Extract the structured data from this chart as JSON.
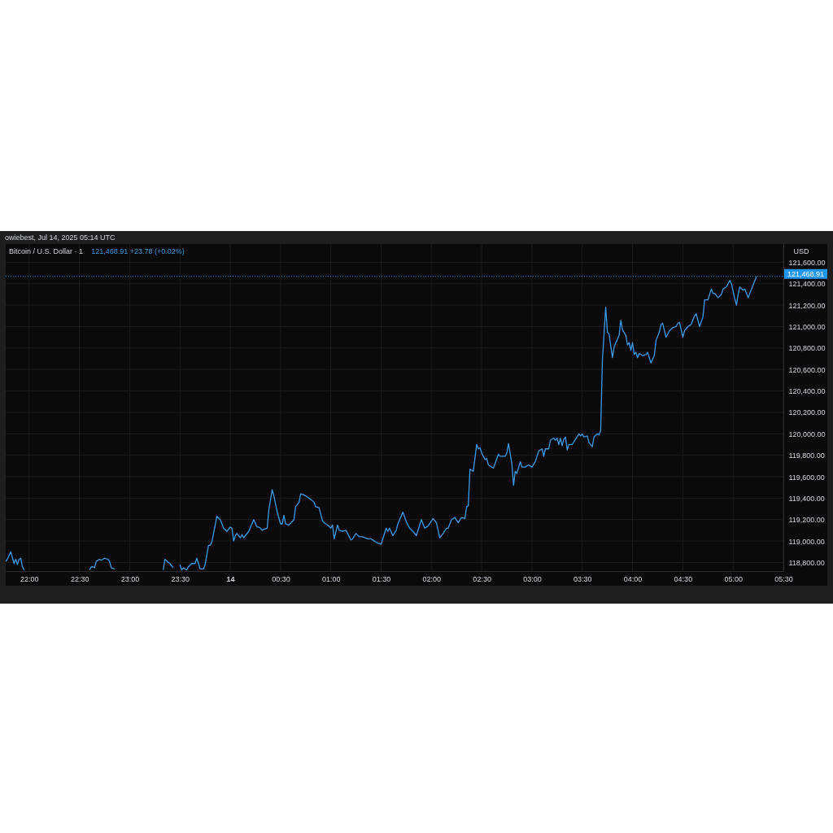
{
  "chart_data": {
    "type": "line",
    "title": "Bitcoin / U.S. Dollar · 1",
    "ylabel": "USD",
    "annotations": [
      "owiebest, Jul 14, 2025 05:14 UTC",
      "121,468.91 +23.78 (+0.02%)"
    ],
    "x": [
      "2025-07-13T21:46",
      "2025-07-13T21:47",
      "2025-07-13T21:49",
      "2025-07-13T21:51",
      "2025-07-13T21:52",
      "2025-07-13T21:53",
      "2025-07-13T21:54",
      "2025-07-13T21:55",
      "2025-07-13T21:56",
      "2025-07-13T21:57",
      "2025-07-13T22:15",
      "2025-07-13T22:36",
      "2025-07-13T22:37",
      "2025-07-13T22:38",
      "2025-07-13T22:39",
      "2025-07-13T22:40",
      "2025-07-13T22:42",
      "2025-07-13T22:43",
      "2025-07-13T22:44",
      "2025-07-13T22:45",
      "2025-07-13T22:47",
      "2025-07-13T22:48",
      "2025-07-13T22:49",
      "2025-07-13T22:51",
      "2025-07-13T23:05",
      "2025-07-13T23:20",
      "2025-07-13T23:21",
      "2025-07-13T23:23",
      "2025-07-13T23:24",
      "2025-07-13T23:26",
      "2025-07-13T23:28",
      "2025-07-13T23:30",
      "2025-07-13T23:31",
      "2025-07-13T23:32",
      "2025-07-13T23:34",
      "2025-07-13T23:35",
      "2025-07-13T23:37",
      "2025-07-13T23:39",
      "2025-07-13T23:40",
      "2025-07-13T23:41",
      "2025-07-13T23:42",
      "2025-07-13T23:44",
      "2025-07-13T23:45",
      "2025-07-13T23:47",
      "2025-07-13T23:48",
      "2025-07-13T23:49",
      "2025-07-13T23:52",
      "2025-07-13T23:54",
      "2025-07-13T23:56",
      "2025-07-13T23:58",
      "2025-07-14T00:00",
      "2025-07-14T00:01",
      "2025-07-14T00:02",
      "2025-07-14T00:03",
      "2025-07-14T00:04",
      "2025-07-14T00:06",
      "2025-07-14T00:07",
      "2025-07-14T00:08",
      "2025-07-14T00:09",
      "2025-07-14T00:11",
      "2025-07-14T00:14",
      "2025-07-14T00:16",
      "2025-07-14T00:17",
      "2025-07-14T00:18",
      "2025-07-14T00:19",
      "2025-07-14T00:20",
      "2025-07-14T00:22",
      "2025-07-14T00:23",
      "2025-07-14T00:25",
      "2025-07-14T00:26",
      "2025-07-14T00:28",
      "2025-07-14T00:30",
      "2025-07-14T00:31",
      "2025-07-14T00:32",
      "2025-07-14T00:33",
      "2025-07-14T00:35",
      "2025-07-14T00:38",
      "2025-07-14T00:39",
      "2025-07-14T00:41",
      "2025-07-14T00:42",
      "2025-07-14T00:44",
      "2025-07-14T00:46",
      "2025-07-14T00:48",
      "2025-07-14T00:50",
      "2025-07-14T00:51",
      "2025-07-14T00:53",
      "2025-07-14T00:55",
      "2025-07-14T00:56",
      "2025-07-14T00:58",
      "2025-07-14T01:00",
      "2025-07-14T01:01",
      "2025-07-14T01:02",
      "2025-07-14T01:04",
      "2025-07-14T01:05",
      "2025-07-14T01:07",
      "2025-07-14T01:09",
      "2025-07-14T01:10",
      "2025-07-14T01:12",
      "2025-07-14T01:13",
      "2025-07-14T01:15",
      "2025-07-14T01:17",
      "2025-07-14T01:19",
      "2025-07-14T01:22",
      "2025-07-14T01:24",
      "2025-07-14T01:26",
      "2025-07-14T01:28",
      "2025-07-14T01:30",
      "2025-07-14T01:31",
      "2025-07-14T01:33",
      "2025-07-14T01:34",
      "2025-07-14T01:35",
      "2025-07-14T01:37",
      "2025-07-14T01:39",
      "2025-07-14T01:40",
      "2025-07-14T01:43",
      "2025-07-14T01:45",
      "2025-07-14T01:47",
      "2025-07-14T01:49",
      "2025-07-14T01:51",
      "2025-07-14T01:54",
      "2025-07-14T01:56",
      "2025-07-14T01:58",
      "2025-07-14T02:01",
      "2025-07-14T02:03",
      "2025-07-14T02:05",
      "2025-07-14T02:07",
      "2025-07-14T02:09",
      "2025-07-14T02:10",
      "2025-07-14T02:12",
      "2025-07-14T02:14",
      "2025-07-14T02:16",
      "2025-07-14T02:18",
      "2025-07-14T02:20",
      "2025-07-14T02:21",
      "2025-07-14T02:22",
      "2025-07-14T02:23",
      "2025-07-14T02:25",
      "2025-07-14T02:27",
      "2025-07-14T02:28",
      "2025-07-14T02:29",
      "2025-07-14T02:30",
      "2025-07-14T02:32",
      "2025-07-14T02:33",
      "2025-07-14T02:34",
      "2025-07-14T02:37",
      "2025-07-14T02:40",
      "2025-07-14T02:41",
      "2025-07-14T02:44",
      "2025-07-14T02:45",
      "2025-07-14T02:46",
      "2025-07-14T02:48",
      "2025-07-14T02:49",
      "2025-07-14T02:50",
      "2025-07-14T02:51",
      "2025-07-14T02:53",
      "2025-07-14T02:54",
      "2025-07-14T02:56",
      "2025-07-14T02:58",
      "2025-07-14T03:00",
      "2025-07-14T03:02",
      "2025-07-14T03:04",
      "2025-07-14T03:06",
      "2025-07-14T03:07",
      "2025-07-14T03:08",
      "2025-07-14T03:10",
      "2025-07-14T03:11",
      "2025-07-14T03:13",
      "2025-07-14T03:14",
      "2025-07-14T03:15",
      "2025-07-14T03:16",
      "2025-07-14T03:17",
      "2025-07-14T03:18",
      "2025-07-14T03:19",
      "2025-07-14T03:20",
      "2025-07-14T03:21",
      "2025-07-14T03:22",
      "2025-07-14T03:24",
      "2025-07-14T03:26",
      "2025-07-14T03:28",
      "2025-07-14T03:29",
      "2025-07-14T03:30",
      "2025-07-14T03:31",
      "2025-07-14T03:33",
      "2025-07-14T03:34",
      "2025-07-14T03:36",
      "2025-07-14T03:37",
      "2025-07-14T03:39",
      "2025-07-14T03:40",
      "2025-07-14T03:41",
      "2025-07-14T03:42",
      "2025-07-14T03:44",
      "2025-07-14T03:45",
      "2025-07-14T03:46",
      "2025-07-14T03:48",
      "2025-07-14T03:49",
      "2025-07-14T03:52",
      "2025-07-14T03:53",
      "2025-07-14T03:54",
      "2025-07-14T03:56",
      "2025-07-14T03:57",
      "2025-07-14T03:58",
      "2025-07-14T03:59",
      "2025-07-14T04:00",
      "2025-07-14T04:01",
      "2025-07-14T04:02",
      "2025-07-14T04:03",
      "2025-07-14T04:04",
      "2025-07-14T04:06",
      "2025-07-14T04:08",
      "2025-07-14T04:09",
      "2025-07-14T04:11",
      "2025-07-14T04:13",
      "2025-07-14T04:14",
      "2025-07-14T04:16",
      "2025-07-14T04:17",
      "2025-07-14T04:18",
      "2025-07-14T04:20",
      "2025-07-14T04:22",
      "2025-07-14T04:24",
      "2025-07-14T04:26",
      "2025-07-14T04:27",
      "2025-07-14T04:28",
      "2025-07-14T04:30",
      "2025-07-14T04:31",
      "2025-07-14T04:33",
      "2025-07-14T04:35",
      "2025-07-14T04:37",
      "2025-07-14T04:38",
      "2025-07-14T04:40",
      "2025-07-14T04:42",
      "2025-07-14T04:43",
      "2025-07-14T04:45",
      "2025-07-14T04:47",
      "2025-07-14T04:48",
      "2025-07-14T04:49",
      "2025-07-14T04:51",
      "2025-07-14T04:53",
      "2025-07-14T04:54",
      "2025-07-14T04:56",
      "2025-07-14T04:58",
      "2025-07-14T04:59",
      "2025-07-14T05:01",
      "2025-07-14T05:02",
      "2025-07-14T05:03",
      "2025-07-14T05:04",
      "2025-07-14T05:06",
      "2025-07-14T05:07",
      "2025-07-14T05:09",
      "2025-07-14T05:10",
      "2025-07-14T05:11",
      "2025-07-14T05:12",
      "2025-07-14T05:14"
    ],
    "series": [
      {
        "color": "#3c9ae8",
        "values": [
          118810,
          118830,
          118900,
          118790,
          118830,
          118780,
          118830,
          118840,
          118760,
          118730,
          null,
          118730,
          118760,
          118760,
          118750,
          118810,
          118830,
          118820,
          118830,
          118840,
          118830,
          118810,
          118750,
          118740,
          null,
          118730,
          118830,
          118800,
          118790,
          118750,
          null,
          118780,
          118730,
          118750,
          118730,
          118760,
          118790,
          118790,
          118840,
          118790,
          118740,
          118740,
          118780,
          118960,
          118960,
          118990,
          119230,
          119200,
          119120,
          119090,
          119130,
          119120,
          119000,
          119050,
          119070,
          119030,
          119060,
          119030,
          119050,
          119090,
          119200,
          119130,
          119130,
          119120,
          119100,
          119110,
          119120,
          119290,
          119480,
          119420,
          119270,
          119160,
          119160,
          119240,
          119160,
          119150,
          119200,
          119320,
          119360,
          119440,
          119430,
          119410,
          119390,
          119360,
          119320,
          119310,
          119190,
          119170,
          119150,
          119120,
          119150,
          119020,
          119150,
          119100,
          119090,
          119100,
          119070,
          119010,
          119020,
          119070,
          119040,
          119040,
          119020,
          119020,
          119000,
          118980,
          118970,
          119020,
          119120,
          119090,
          119120,
          119050,
          119100,
          119160,
          119270,
          119180,
          119120,
          119090,
          119050,
          119200,
          119120,
          119140,
          119210,
          119170,
          119030,
          119070,
          119120,
          119120,
          119200,
          119220,
          119170,
          119220,
          119210,
          119320,
          119330,
          119670,
          119650,
          119900,
          119860,
          119870,
          119820,
          119760,
          119770,
          119710,
          119680,
          119810,
          119790,
          119790,
          119820,
          119910,
          119720,
          119520,
          119650,
          119630,
          119740,
          119690,
          119690,
          119710,
          119690,
          119740,
          119840,
          119860,
          119790,
          119860,
          119860,
          119940,
          119960,
          119940,
          119960,
          119900,
          119960,
          119890,
          119950,
          119970,
          119850,
          119900,
          119900,
          119950,
          120000,
          119980,
          120000,
          119970,
          119980,
          119920,
          119880,
          119970,
          120000,
          119990,
          120030,
          120680,
          121180,
          120950,
          120930,
          120710,
          120810,
          120920,
          121060,
          120970,
          120920,
          120830,
          120850,
          120780,
          120850,
          120740,
          120760,
          120710,
          120750,
          120730,
          120740,
          120760,
          120660,
          120730,
          120870,
          120950,
          121020,
          121030,
          120900,
          120960,
          120990,
          121000,
          121030,
          121040,
          120900,
          120960,
          121000,
          121020,
          121100,
          121120,
          121000,
          121090,
          121250,
          121250,
          121350,
          121310,
          121310,
          121270,
          121300,
          121350,
          121370,
          121430,
          121400,
          121260,
          121200,
          121300,
          121370,
          121340,
          121350,
          121270,
          121310,
          121350,
          121390,
          121468.91
        ]
      }
    ],
    "xlim": [
      "2025-07-13T21:46",
      "2025-07-14T05:30"
    ],
    "ylim": [
      118720,
      121770
    ],
    "xticks": [
      {
        "value": "2025-07-13T22:00",
        "label": "22:00"
      },
      {
        "value": "2025-07-13T22:30",
        "label": "22:30"
      },
      {
        "value": "2025-07-13T23:00",
        "label": "23:00"
      },
      {
        "value": "2025-07-13T23:30",
        "label": "23:30"
      },
      {
        "value": "2025-07-14T00:00",
        "label": "14"
      },
      {
        "value": "2025-07-14T00:30",
        "label": "00:30"
      },
      {
        "value": "2025-07-14T01:00",
        "label": "01:00"
      },
      {
        "value": "2025-07-14T01:30",
        "label": "01:30"
      },
      {
        "value": "2025-07-14T02:00",
        "label": "02:00"
      },
      {
        "value": "2025-07-14T02:30",
        "label": "02:30"
      },
      {
        "value": "2025-07-14T03:00",
        "label": "03:00"
      },
      {
        "value": "2025-07-14T03:30",
        "label": "03:30"
      },
      {
        "value": "2025-07-14T04:00",
        "label": "04:00"
      },
      {
        "value": "2025-07-14T04:30",
        "label": "04:30"
      },
      {
        "value": "2025-07-14T05:00",
        "label": "05:00"
      },
      {
        "value": "2025-07-14T05:30",
        "label": "05:30"
      }
    ],
    "yticks": [
      {
        "value": 118800,
        "label": "118,800.00"
      },
      {
        "value": 119000,
        "label": "119,000.00"
      },
      {
        "value": 119200,
        "label": "119,200.00"
      },
      {
        "value": 119400,
        "label": "119,400.00"
      },
      {
        "value": 119600,
        "label": "119,600.00"
      },
      {
        "value": 119800,
        "label": "119,800.00"
      },
      {
        "value": 120000,
        "label": "120,000.00"
      },
      {
        "value": 120200,
        "label": "120,200.00"
      },
      {
        "value": 120400,
        "label": "120,400.00"
      },
      {
        "value": 120600,
        "label": "120,600.00"
      },
      {
        "value": 120800,
        "label": "120,800.00"
      },
      {
        "value": 121000,
        "label": "121,000.00"
      },
      {
        "value": 121200,
        "label": "121,200.00"
      },
      {
        "value": 121400,
        "label": "121,400.00"
      },
      {
        "value": 121600,
        "label": "121,600.00"
      }
    ],
    "ref_lines": [
      {
        "axis": "y",
        "value": 121468.91,
        "label": "121,468.91",
        "color": "#2196f3",
        "line_style": "dotted"
      }
    ],
    "grid": true
  }
}
